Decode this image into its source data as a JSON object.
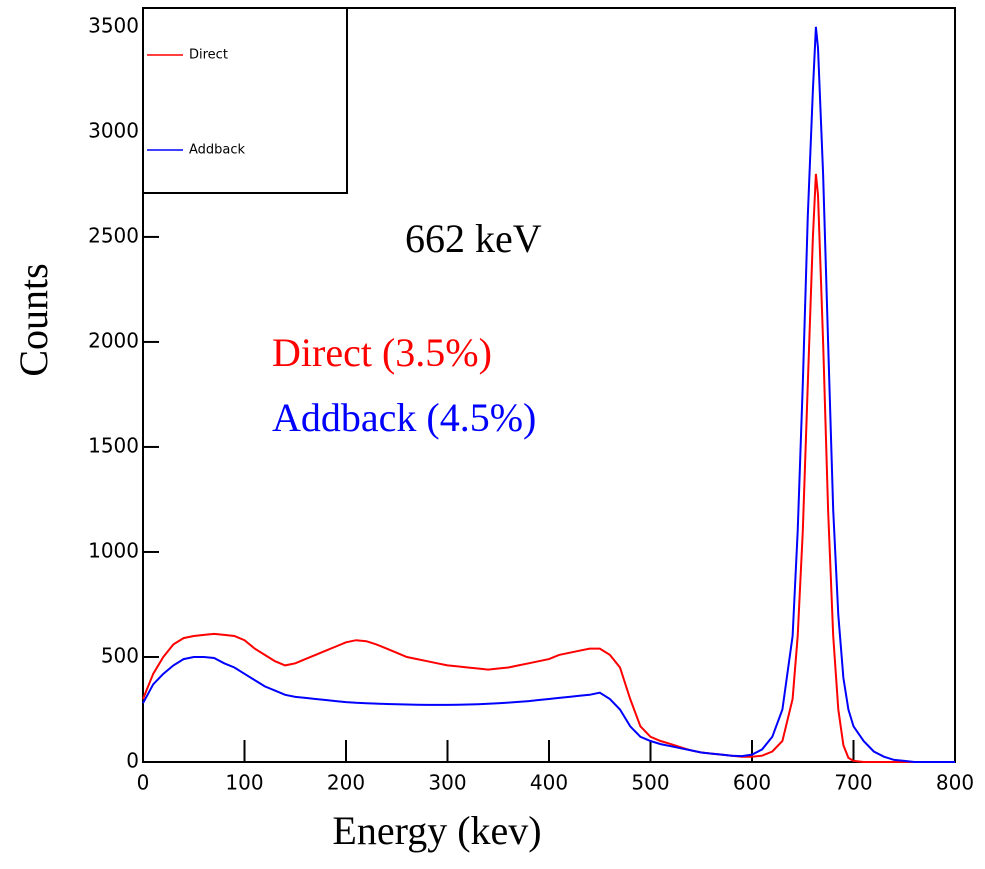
{
  "chart_data": {
    "type": "line",
    "xlabel": "Energy (kev)",
    "ylabel": "Counts",
    "x": [
      0,
      10,
      20,
      30,
      40,
      50,
      60,
      70,
      80,
      90,
      100,
      110,
      120,
      130,
      140,
      150,
      160,
      170,
      180,
      190,
      200,
      210,
      220,
      230,
      240,
      250,
      260,
      270,
      280,
      290,
      300,
      310,
      320,
      330,
      340,
      350,
      360,
      370,
      380,
      390,
      400,
      410,
      420,
      430,
      440,
      450,
      460,
      470,
      480,
      490,
      500,
      510,
      520,
      530,
      540,
      550,
      560,
      570,
      580,
      590,
      600,
      610,
      620,
      630,
      640,
      645,
      650,
      655,
      660,
      663,
      665,
      670,
      675,
      680,
      685,
      690,
      695,
      700,
      710,
      720,
      730,
      740,
      750,
      760,
      770,
      780,
      790,
      800
    ],
    "series": [
      {
        "name": "Direct",
        "color": "#ff0000",
        "values": [
          300,
          420,
          500,
          560,
          590,
          600,
          605,
          610,
          605,
          600,
          580,
          540,
          510,
          480,
          460,
          470,
          490,
          510,
          530,
          550,
          570,
          580,
          575,
          560,
          540,
          520,
          500,
          490,
          480,
          470,
          460,
          455,
          450,
          445,
          440,
          445,
          450,
          460,
          470,
          480,
          490,
          510,
          520,
          530,
          540,
          540,
          510,
          450,
          300,
          170,
          120,
          100,
          85,
          70,
          55,
          45,
          40,
          35,
          30,
          25,
          25,
          30,
          50,
          100,
          300,
          600,
          1100,
          1800,
          2500,
          2800,
          2700,
          2000,
          1200,
          600,
          250,
          80,
          20,
          5,
          0,
          0,
          0,
          0,
          0,
          0,
          0,
          0,
          0,
          0
        ]
      },
      {
        "name": "Addback",
        "color": "#0000ff",
        "values": [
          280,
          370,
          420,
          460,
          490,
          500,
          500,
          495,
          470,
          450,
          420,
          390,
          360,
          340,
          320,
          310,
          305,
          300,
          295,
          290,
          285,
          282,
          280,
          278,
          276,
          275,
          274,
          273,
          272,
          272,
          272,
          273,
          274,
          275,
          277,
          280,
          283,
          286,
          290,
          295,
          300,
          305,
          310,
          315,
          320,
          330,
          300,
          250,
          170,
          120,
          100,
          85,
          75,
          65,
          55,
          45,
          40,
          35,
          30,
          28,
          35,
          60,
          120,
          250,
          600,
          1100,
          1800,
          2600,
          3200,
          3500,
          3400,
          2800,
          2000,
          1200,
          700,
          400,
          250,
          170,
          100,
          50,
          25,
          10,
          5,
          0,
          0,
          0,
          0,
          0
        ]
      }
    ],
    "xlim": [
      0,
      800
    ],
    "xticks": [
      0,
      100,
      200,
      300,
      400,
      500,
      600,
      700,
      800
    ],
    "ylim": [
      0,
      3590
    ],
    "yticks": [
      0,
      500,
      1000,
      1500,
      2000,
      2500,
      3000,
      3500
    ],
    "legend": "upper left",
    "annotations": [
      {
        "text": "662 keV",
        "color": "#000000"
      },
      {
        "text": "Direct (3.5%)",
        "color": "#ff0000"
      },
      {
        "text": "Addback (4.5%)",
        "color": "#0000ff"
      }
    ]
  }
}
